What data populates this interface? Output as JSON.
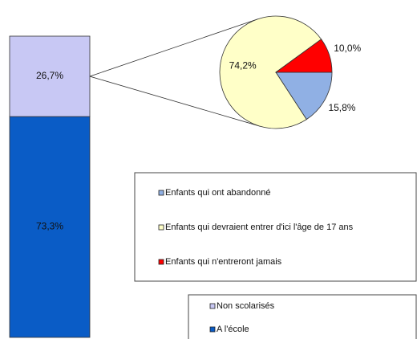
{
  "chart_data": {
    "type": "bar-of-pie",
    "bar": {
      "series": [
        {
          "name": "Non scolarisés",
          "color": "#c8c8f4",
          "values": [
            26.7
          ],
          "value_labels": [
            "26,7%"
          ]
        },
        {
          "name": "A l'école",
          "color": "#0a5cc6",
          "values": [
            73.3
          ],
          "value_labels": [
            "73,3%"
          ]
        }
      ]
    },
    "pie": {
      "categories": [
        "Enfants qui ont abandonné",
        "Enfants qui devraient entrer d'ici l'âge de 17 ans",
        "Enfants qui n'entreront jamais"
      ],
      "values": [
        15.8,
        74.2,
        10.0
      ],
      "value_labels": [
        "15,8%",
        "74,2%",
        "10,0%"
      ],
      "colors": [
        "#90b0e4",
        "#ffffc8",
        "#ff0000"
      ]
    }
  }
}
